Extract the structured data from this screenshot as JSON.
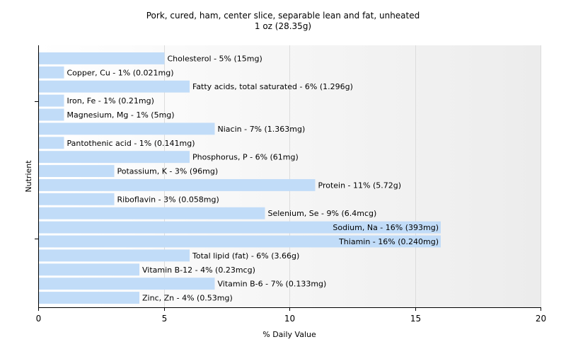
{
  "title": {
    "line1": "Pork, cured, ham, center slice, separable lean and fat, unheated",
    "line2": "1 oz (28.35g)"
  },
  "chart_data": {
    "type": "bar",
    "orientation": "horizontal",
    "title": "Pork, cured, ham, center slice, separable lean and fat, unheated",
    "subtitle": "1 oz (28.35g)",
    "xlabel": "% Daily Value",
    "ylabel": "Nutrient",
    "xlim": [
      0,
      20
    ],
    "xticks": [
      0,
      5,
      10,
      15,
      20
    ],
    "grid": "vertical",
    "bar_color": "#c1dcf8",
    "categories": [
      "Cholesterol",
      "Copper, Cu",
      "Fatty acids, total saturated",
      "Iron, Fe",
      "Magnesium, Mg",
      "Niacin",
      "Pantothenic acid",
      "Phosphorus, P",
      "Potassium, K",
      "Protein",
      "Riboflavin",
      "Selenium, Se",
      "Sodium, Na",
      "Thiamin",
      "Total lipid (fat)",
      "Vitamin B-12",
      "Vitamin B-6",
      "Zinc, Zn"
    ],
    "values": [
      5,
      1,
      6,
      1,
      1,
      7,
      1,
      6,
      3,
      11,
      3,
      9,
      16,
      16,
      6,
      4,
      7,
      4
    ],
    "labels": [
      "Cholesterol - 5% (15mg)",
      "Copper, Cu - 1% (0.021mg)",
      "Fatty acids, total saturated - 6% (1.296g)",
      "Iron, Fe - 1% (0.21mg)",
      "Magnesium, Mg - 1% (5mg)",
      "Niacin - 7% (1.363mg)",
      "Pantothenic acid - 1% (0.141mg)",
      "Phosphorus, P - 6% (61mg)",
      "Potassium, K - 3% (96mg)",
      "Protein - 11% (5.72g)",
      "Riboflavin - 3% (0.058mg)",
      "Selenium, Se - 9% (6.4mcg)",
      "Sodium, Na - 16% (393mg)",
      "Thiamin - 16% (0.240mg)",
      "Total lipid (fat) - 6% (3.66g)",
      "Vitamin B-12 - 4% (0.23mcg)",
      "Vitamin B-6 - 7% (0.133mg)",
      "Zinc, Zn - 4% (0.53mg)"
    ]
  }
}
